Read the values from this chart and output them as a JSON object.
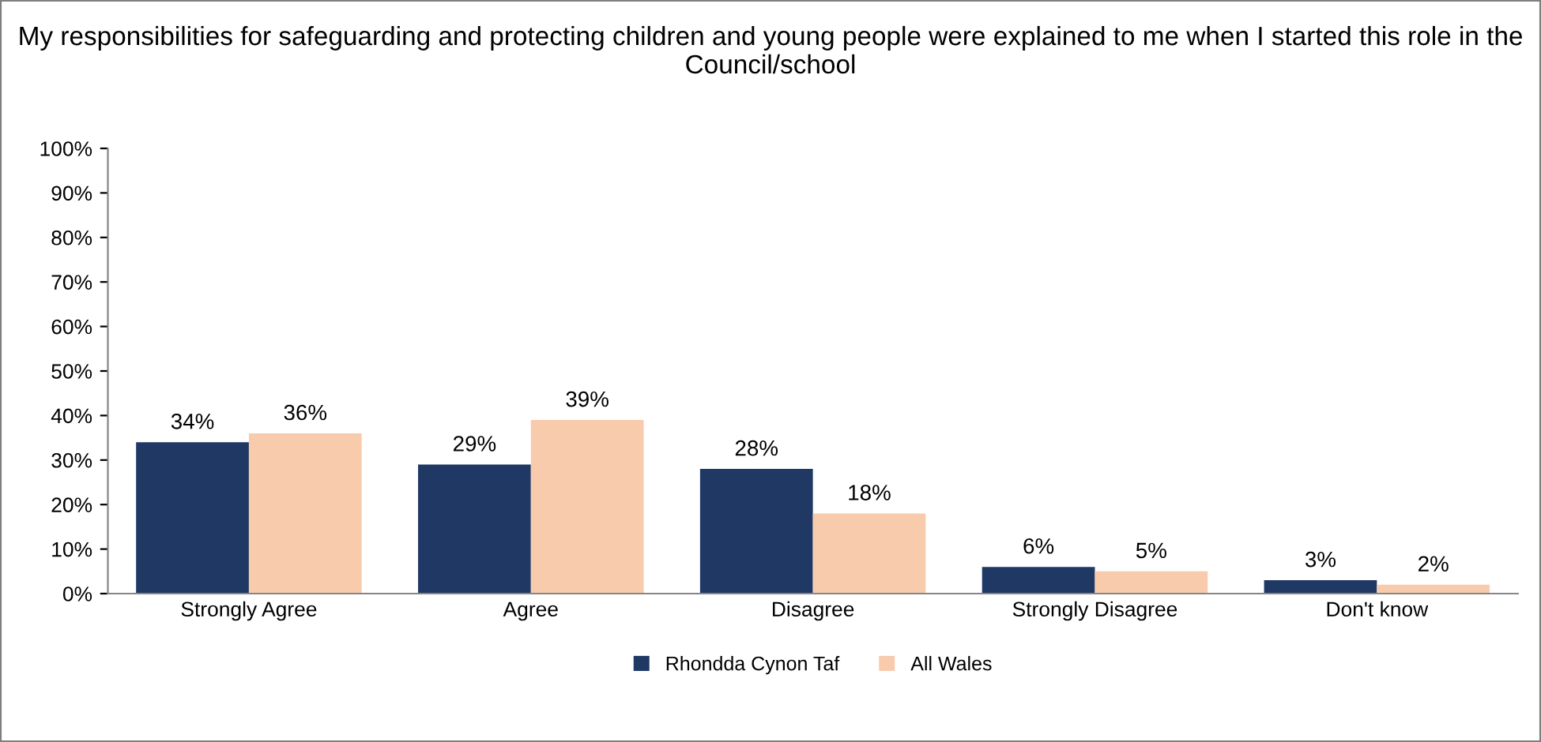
{
  "chart_data": {
    "type": "bar",
    "title": "My responsibilities for safeguarding and protecting children and young people were explained to me when I started this role in the Council/school",
    "categories": [
      "Strongly Agree",
      "Agree",
      "Disagree",
      "Strongly Disagree",
      "Don't know"
    ],
    "series": [
      {
        "name": "Rhondda Cynon Taf",
        "color": "#1f3864",
        "values": [
          34,
          29,
          28,
          6,
          3
        ],
        "value_labels": [
          "34%",
          "29%",
          "28%",
          "6%",
          "3%"
        ]
      },
      {
        "name": "All Wales",
        "color": "#f8cbad",
        "values": [
          36,
          39,
          18,
          5,
          2
        ],
        "value_labels": [
          "36%",
          "39%",
          "18%",
          "5%",
          "2%"
        ]
      }
    ],
    "ylim": [
      0,
      100
    ],
    "yticks": [
      {
        "value": 0,
        "label": "0%"
      },
      {
        "value": 10,
        "label": "10%"
      },
      {
        "value": 20,
        "label": "20%"
      },
      {
        "value": 30,
        "label": "30%"
      },
      {
        "value": 40,
        "label": "40%"
      },
      {
        "value": 50,
        "label": "50%"
      },
      {
        "value": 60,
        "label": "60%"
      },
      {
        "value": 70,
        "label": "70%"
      },
      {
        "value": 80,
        "label": "80%"
      },
      {
        "value": 90,
        "label": "90%"
      },
      {
        "value": 100,
        "label": "100%"
      }
    ],
    "grid": false,
    "legend": "bottom"
  }
}
